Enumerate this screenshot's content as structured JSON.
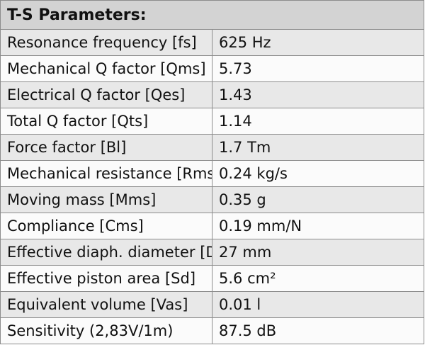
{
  "table": {
    "title": "T-S Parameters:",
    "rows": [
      {
        "label": "Resonance frequency [fs]",
        "value": "625 Hz"
      },
      {
        "label": "Mechanical Q factor [Qms]",
        "value": "5.73"
      },
      {
        "label": "Electrical Q factor [Qes]",
        "value": "1.43"
      },
      {
        "label": "Total Q factor [Qts]",
        "value": "1.14"
      },
      {
        "label": "Force factor [Bl]",
        "value": "1.7 Tm"
      },
      {
        "label": "Mechanical resistance [Rms]",
        "value": "0.24 kg/s"
      },
      {
        "label": "Moving mass [Mms]",
        "value": "0.35 g"
      },
      {
        "label": "Compliance [Cms]",
        "value": "0.19 mm/N"
      },
      {
        "label": "Effective diaph. diameter [D]",
        "value": "27 mm"
      },
      {
        "label": "Effective piston area [Sd]",
        "value": "5.6 cm²"
      },
      {
        "label": "Equivalent volume [Vas]",
        "value": "0.01 l"
      },
      {
        "label": "Sensitivity (2,83V/1m)",
        "value": "87.5 dB"
      }
    ]
  }
}
